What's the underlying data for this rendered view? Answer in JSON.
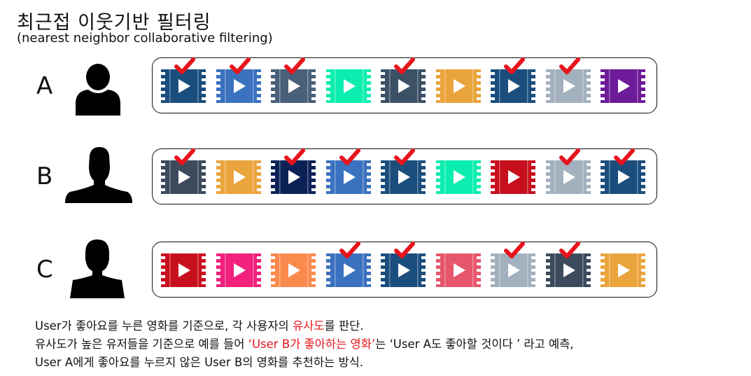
{
  "header": {
    "title": "최근접 이웃기반 필터링",
    "subtitle": "(nearest neighbor collaborative filtering)"
  },
  "users": [
    {
      "label": "A",
      "avatar": "person-silhouette-icon",
      "movies": [
        {
          "color": "#1b4e7d",
          "checked": true
        },
        {
          "color": "#3b72c0",
          "checked": true
        },
        {
          "color": "#49607a",
          "checked": true
        },
        {
          "color": "#0ceeb0",
          "checked": false
        },
        {
          "color": "#3c5166",
          "checked": true
        },
        {
          "color": "#eaa43c",
          "checked": false
        },
        {
          "color": "#1b4e7d",
          "checked": true
        },
        {
          "color": "#a3b0bd",
          "checked": true
        },
        {
          "color": "#6d1b99",
          "checked": false
        }
      ]
    },
    {
      "label": "B",
      "avatar": "man-silhouette-icon",
      "movies": [
        {
          "color": "#3c4a5c",
          "checked": true
        },
        {
          "color": "#eaa43c",
          "checked": false
        },
        {
          "color": "#0c2257",
          "checked": true
        },
        {
          "color": "#3b72c0",
          "checked": true
        },
        {
          "color": "#1b4e7d",
          "checked": true
        },
        {
          "color": "#0ceeb0",
          "checked": false
        },
        {
          "color": "#c80f1e",
          "checked": false
        },
        {
          "color": "#a3b0bd",
          "checked": true
        },
        {
          "color": "#1b4e7d",
          "checked": true
        }
      ]
    },
    {
      "label": "C",
      "avatar": "woman-silhouette-icon",
      "movies": [
        {
          "color": "#c80f1e",
          "checked": false
        },
        {
          "color": "#f2217b",
          "checked": false
        },
        {
          "color": "#fb8a4e",
          "checked": false
        },
        {
          "color": "#3b72c0",
          "checked": true
        },
        {
          "color": "#1b4e7d",
          "checked": true
        },
        {
          "color": "#e6566c",
          "checked": false
        },
        {
          "color": "#a3b0bd",
          "checked": true
        },
        {
          "color": "#3c4a5c",
          "checked": true
        },
        {
          "color": "#eaa43c",
          "checked": false
        }
      ]
    }
  ],
  "description": {
    "line1_a": "User가 좋아요를 누른 영화를 기준으로, 각 사용자의 ",
    "line1_highlight": "유사도",
    "line1_b": "를 판단.",
    "line2_a": "유사도가 높은 유저들을 기준으로 예를 들어 ",
    "line2_highlight1": "‘User B가 좋아하는 영화’",
    "line2_b": "는 ‘User A도 좋아할 것이다 ’ 라고 예측,",
    "line3": "User A에게 좋아요를 누르지 않은 User B의 영화를 추천하는 방식."
  },
  "colors": {
    "check": "#e8141c",
    "highlight": "#e8141c",
    "play": "#ffffff"
  }
}
